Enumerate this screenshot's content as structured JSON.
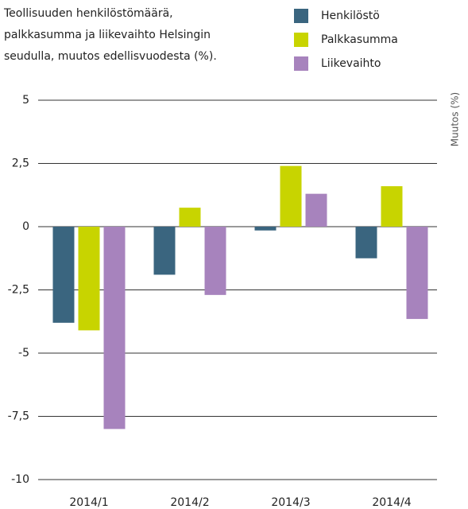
{
  "chart_data": {
    "type": "bar",
    "title": [
      "Teollisuuden henkilöstömäärä,",
      "palkkasumma ja liikevaihto Helsingin",
      "seudulla, muutos edellisvuodesta (%)."
    ],
    "y_label": "Muutos (%)",
    "categories": [
      "2014/1",
      "2014/2",
      "2014/3",
      "2014/4"
    ],
    "series": [
      {
        "name": "Henkilöstö",
        "color": "#3a657f",
        "values": [
          -3.8,
          -1.9,
          -0.15,
          -1.25
        ]
      },
      {
        "name": "Palkkasumma",
        "color": "#c8d400",
        "values": [
          -4.1,
          0.75,
          2.4,
          1.6
        ]
      },
      {
        "name": "Liikevaihto",
        "color": "#a783bd",
        "values": [
          -8.0,
          -2.7,
          1.3,
          -3.65
        ]
      }
    ],
    "ylim": [
      -10,
      5
    ],
    "yticks": [
      -10,
      {
        "value": -7.5,
        "label": "-7,5"
      },
      -5,
      {
        "value": -2.5,
        "label": "-2,5"
      },
      0,
      {
        "value": 2.5,
        "label": "2,5"
      },
      5
    ],
    "grid": true
  }
}
